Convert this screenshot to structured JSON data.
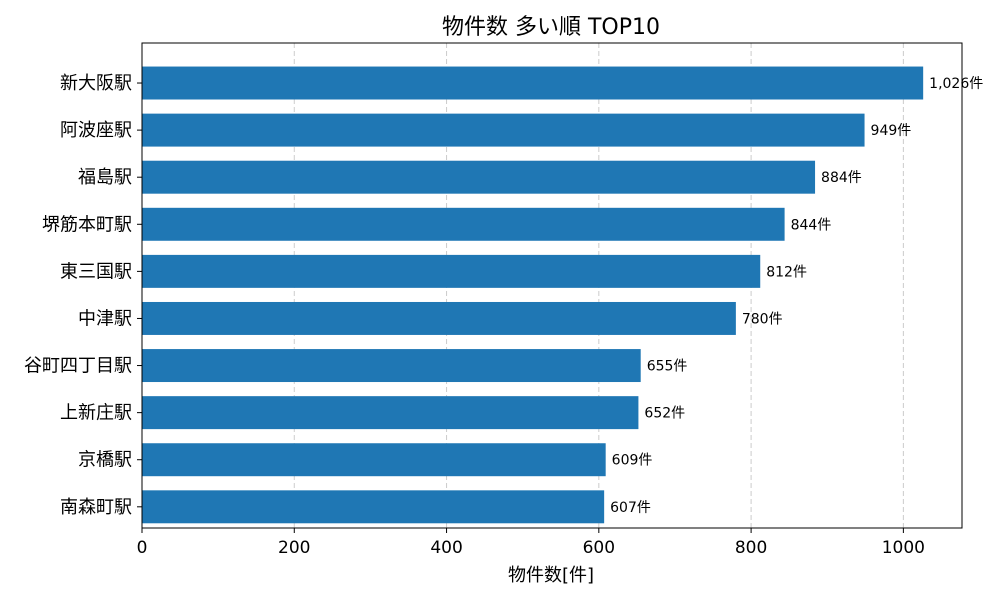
{
  "chart_data": {
    "type": "bar",
    "orientation": "horizontal",
    "title": "物件数 多い順 TOP10",
    "xlabel": "物件数[件]",
    "ylabel": "",
    "categories": [
      "新大阪駅",
      "阿波座駅",
      "福島駅",
      "堺筋本町駅",
      "東三国駅",
      "中津駅",
      "谷町四丁目駅",
      "上新庄駅",
      "京橋駅",
      "南森町駅"
    ],
    "values": [
      1026,
      949,
      884,
      844,
      812,
      780,
      655,
      652,
      609,
      607
    ],
    "data_labels": [
      "1,026件",
      "949件",
      "884件",
      "844件",
      "812件",
      "780件",
      "655件",
      "652件",
      "609件",
      "607件"
    ],
    "x_ticks": [
      "0",
      "200",
      "400",
      "600",
      "800",
      "1000"
    ],
    "xlim": [
      0,
      1077
    ],
    "grid": "vertical-dashed",
    "bar_color": "#1f77b4"
  }
}
